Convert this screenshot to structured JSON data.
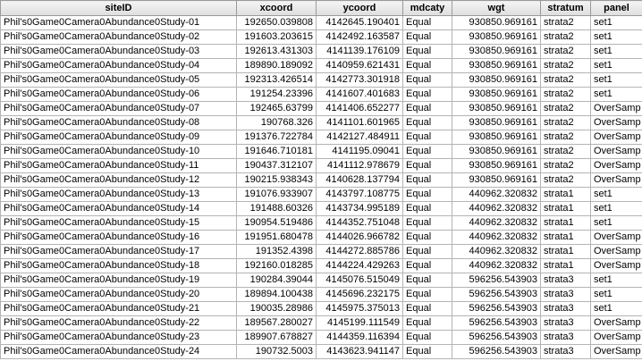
{
  "table": {
    "columns": [
      "siteID",
      "xcoord",
      "ycoord",
      "mdcaty",
      "wgt",
      "stratum",
      "panel"
    ],
    "rows": [
      [
        "Phil's0Game0Camera0Abundance0Study-01",
        "192650.039808",
        "4142645.190401",
        "Equal",
        "930850.969161",
        "strata2",
        "set1"
      ],
      [
        "Phil's0Game0Camera0Abundance0Study-02",
        "191603.203615",
        "4142492.163587",
        "Equal",
        "930850.969161",
        "strata2",
        "set1"
      ],
      [
        "Phil's0Game0Camera0Abundance0Study-03",
        "192613.431303",
        "4141139.176109",
        "Equal",
        "930850.969161",
        "strata2",
        "set1"
      ],
      [
        "Phil's0Game0Camera0Abundance0Study-04",
        "189890.189092",
        "4140959.621431",
        "Equal",
        "930850.969161",
        "strata2",
        "set1"
      ],
      [
        "Phil's0Game0Camera0Abundance0Study-05",
        "192313.426514",
        "4142773.301918",
        "Equal",
        "930850.969161",
        "strata2",
        "set1"
      ],
      [
        "Phil's0Game0Camera0Abundance0Study-06",
        "191254.23396",
        "4141607.401683",
        "Equal",
        "930850.969161",
        "strata2",
        "set1"
      ],
      [
        "Phil's0Game0Camera0Abundance0Study-07",
        "192465.63799",
        "4141406.652277",
        "Equal",
        "930850.969161",
        "strata2",
        "OverSamp"
      ],
      [
        "Phil's0Game0Camera0Abundance0Study-08",
        "190768.326",
        "4141101.601965",
        "Equal",
        "930850.969161",
        "strata2",
        "OverSamp"
      ],
      [
        "Phil's0Game0Camera0Abundance0Study-09",
        "191376.722784",
        "4142127.484911",
        "Equal",
        "930850.969161",
        "strata2",
        "OverSamp"
      ],
      [
        "Phil's0Game0Camera0Abundance0Study-10",
        "191646.710181",
        "4141195.09041",
        "Equal",
        "930850.969161",
        "strata2",
        "OverSamp"
      ],
      [
        "Phil's0Game0Camera0Abundance0Study-11",
        "190437.312107",
        "4141112.978679",
        "Equal",
        "930850.969161",
        "strata2",
        "OverSamp"
      ],
      [
        "Phil's0Game0Camera0Abundance0Study-12",
        "190215.938343",
        "4140628.137794",
        "Equal",
        "930850.969161",
        "strata2",
        "OverSamp"
      ],
      [
        "Phil's0Game0Camera0Abundance0Study-13",
        "191076.933907",
        "4143797.108775",
        "Equal",
        "440962.320832",
        "strata1",
        "set1"
      ],
      [
        "Phil's0Game0Camera0Abundance0Study-14",
        "191488.60326",
        "4143734.995189",
        "Equal",
        "440962.320832",
        "strata1",
        "set1"
      ],
      [
        "Phil's0Game0Camera0Abundance0Study-15",
        "190954.519486",
        "4144352.751048",
        "Equal",
        "440962.320832",
        "strata1",
        "set1"
      ],
      [
        "Phil's0Game0Camera0Abundance0Study-16",
        "191951.680478",
        "4144026.966782",
        "Equal",
        "440962.320832",
        "strata1",
        "OverSamp"
      ],
      [
        "Phil's0Game0Camera0Abundance0Study-17",
        "191352.4398",
        "4144272.885786",
        "Equal",
        "440962.320832",
        "strata1",
        "OverSamp"
      ],
      [
        "Phil's0Game0Camera0Abundance0Study-18",
        "192160.018285",
        "4144224.429263",
        "Equal",
        "440962.320832",
        "strata1",
        "OverSamp"
      ],
      [
        "Phil's0Game0Camera0Abundance0Study-19",
        "190284.39044",
        "4145076.515049",
        "Equal",
        "596256.543903",
        "strata3",
        "set1"
      ],
      [
        "Phil's0Game0Camera0Abundance0Study-20",
        "189894.100438",
        "4145696.232175",
        "Equal",
        "596256.543903",
        "strata3",
        "set1"
      ],
      [
        "Phil's0Game0Camera0Abundance0Study-21",
        "190035.28986",
        "4145975.375013",
        "Equal",
        "596256.543903",
        "strata3",
        "set1"
      ],
      [
        "Phil's0Game0Camera0Abundance0Study-22",
        "189567.280027",
        "4145199.111549",
        "Equal",
        "596256.543903",
        "strata3",
        "OverSamp"
      ],
      [
        "Phil's0Game0Camera0Abundance0Study-23",
        "189907.678827",
        "4144359.116394",
        "Equal",
        "596256.543903",
        "strata3",
        "OverSamp"
      ],
      [
        "Phil's0Game0Camera0Abundance0Study-24",
        "190732.5003",
        "4143623.941147",
        "Equal",
        "596256.543903",
        "strata3",
        "OverSamp"
      ]
    ]
  }
}
